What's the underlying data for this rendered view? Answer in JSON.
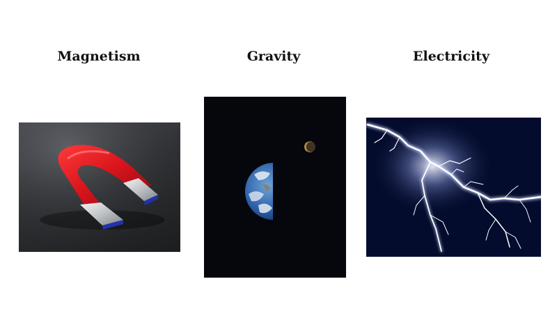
{
  "titles": {
    "magnetism": "Magnetism",
    "gravity": "Gravity",
    "electricity": "Electricity"
  },
  "colors": {
    "magnet_red": "#d8141c",
    "space_bg": "#05070d",
    "lightning_bg": "#040c2e"
  }
}
